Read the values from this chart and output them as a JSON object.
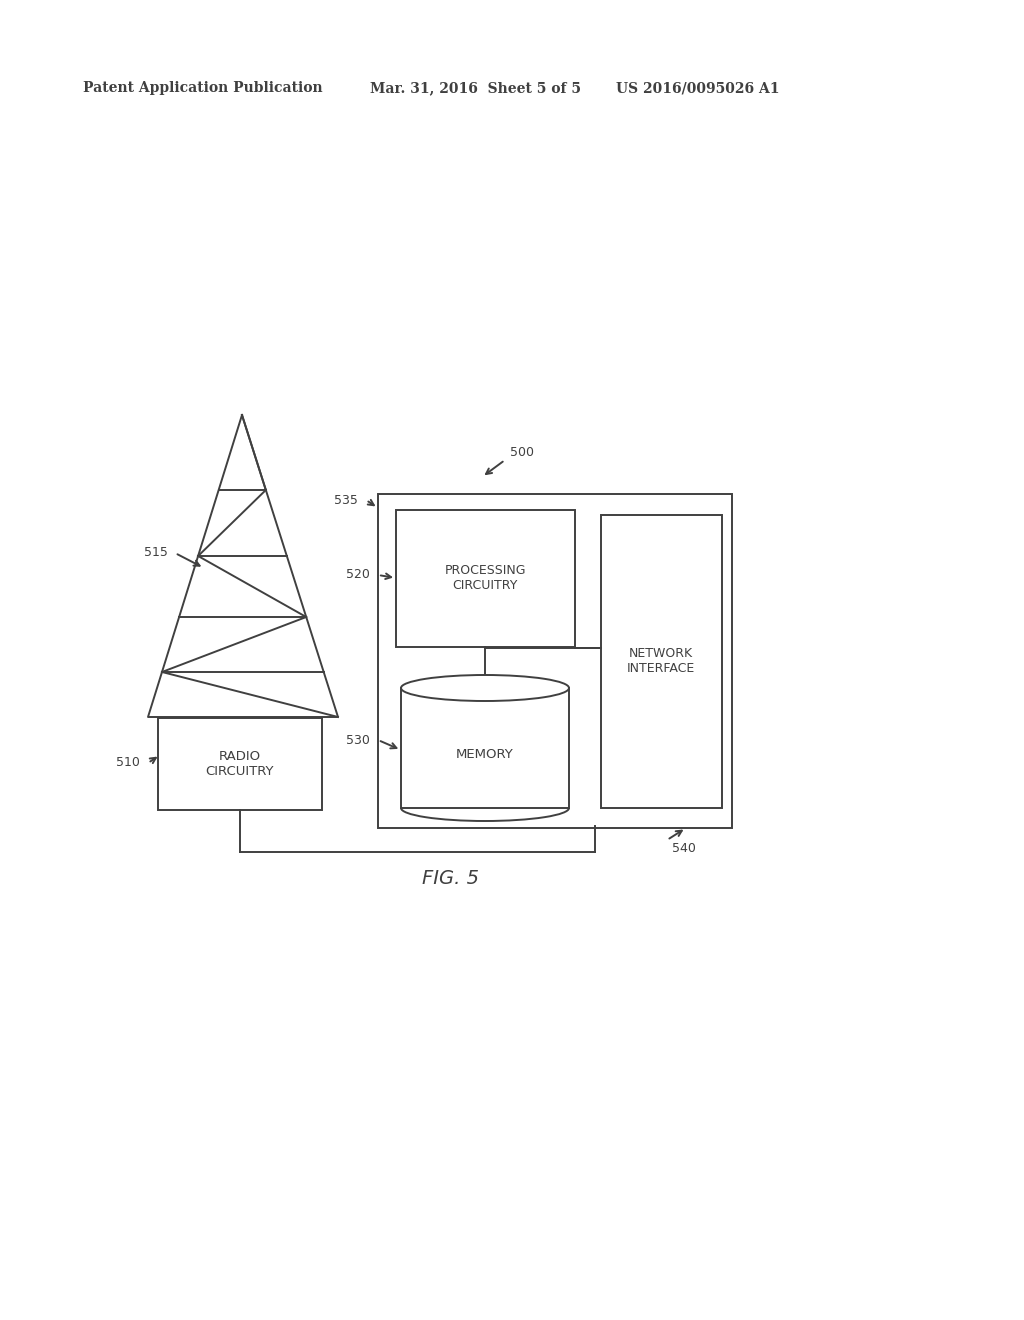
{
  "bg_color": "#ffffff",
  "line_color": "#404040",
  "header_text1": "Patent Application Publication",
  "header_text2": "Mar. 31, 2016  Sheet 5 of 5",
  "header_text3": "US 2016/0095026 A1",
  "fig_label": "FIG. 5",
  "label_500": "500",
  "label_510": "510",
  "label_515": "515",
  "label_520": "520",
  "label_530": "530",
  "label_535": "535",
  "label_540": "540",
  "text_radio": "RADIO\nCIRCUITRY",
  "text_processing": "PROCESSING\nCIRCUITRY",
  "text_memory": "MEMORY",
  "text_network": "NETWORK\nINTERFACE"
}
